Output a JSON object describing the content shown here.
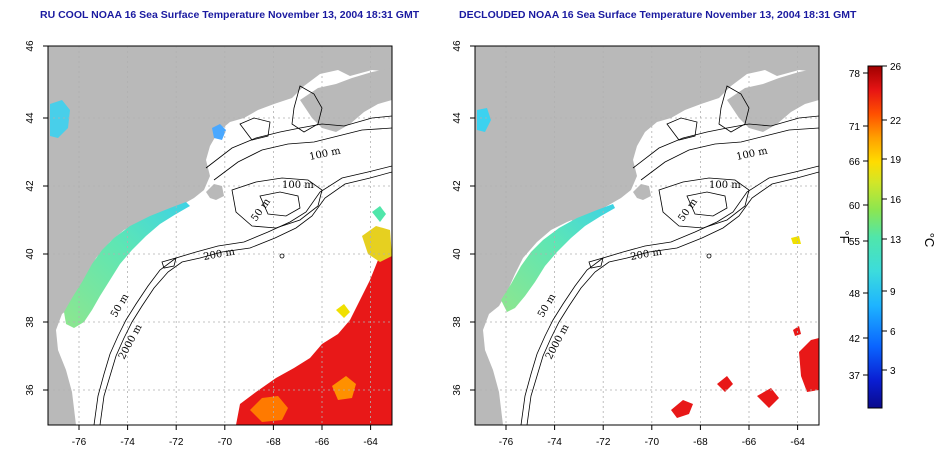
{
  "maps": [
    {
      "title": "RU COOL NOAA 16 Sea Surface Temperature November 13, 2004 18:31 GMT",
      "contour_labels": [
        "100 m",
        "100 m",
        "50 m",
        "200 m",
        "50 m",
        "2000 m"
      ]
    },
    {
      "title": "DECLOUDED NOAA 16 Sea Surface Temperature November 13, 2004 18:31 GMT",
      "contour_labels": [
        "100 m",
        "100 m",
        "50 m",
        "200 m",
        "50 m",
        "2000 m"
      ]
    }
  ],
  "axes": {
    "x_ticks": [
      "-76",
      "-74",
      "-72",
      "-70",
      "-68",
      "-66",
      "-64"
    ],
    "y_ticks": [
      "46",
      "44",
      "42",
      "40",
      "38",
      "36"
    ],
    "lon_range": [
      -77,
      -63
    ],
    "lat_range": [
      35,
      46
    ]
  },
  "colorbar": {
    "fahrenheit_ticks": [
      "78",
      "71",
      "66",
      "60",
      "55",
      "48",
      "42",
      "37"
    ],
    "celsius_ticks": [
      "26",
      "22",
      "19",
      "16",
      "13",
      "9",
      "6",
      "3"
    ],
    "fahrenheit_unit": "°F",
    "celsius_unit": "°C",
    "colors": [
      "#0a0a8c",
      "#0a1ed2",
      "#0a64ff",
      "#1eb4ff",
      "#3cdcdc",
      "#50e6aa",
      "#8ce650",
      "#d2e628",
      "#ffdc00",
      "#ffa000",
      "#ff5000",
      "#e61414",
      "#a00000"
    ]
  },
  "colors": {
    "land": "#b9b9b9",
    "ocean": "#ffffff",
    "title": "#1a1aa0",
    "grid": "#b0b0b0"
  }
}
